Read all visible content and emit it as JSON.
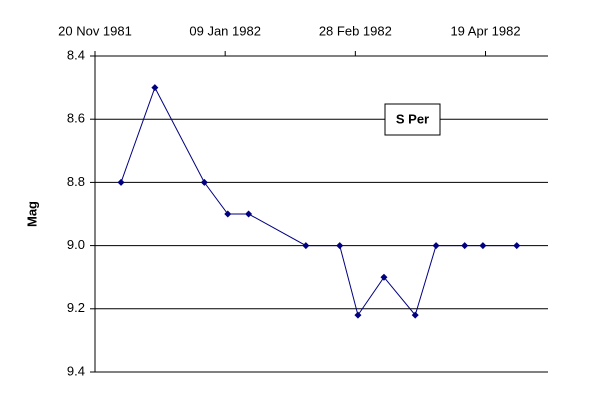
{
  "chart_data": {
    "type": "line",
    "title": "S Per",
    "y_label": "Mag",
    "x": [
      "1981-11-30",
      "1981-12-13",
      "1982-01-01",
      "1982-01-10",
      "1982-01-18",
      "1982-02-09",
      "1982-02-22",
      "1982-03-01",
      "1982-03-11",
      "1982-03-23",
      "1982-03-31",
      "1982-04-11",
      "1982-04-18",
      "1982-05-01"
    ],
    "series": [
      {
        "name": "S Per",
        "color": "#000080",
        "values": [
          8.8,
          8.5,
          8.8,
          8.9,
          8.9,
          9.0,
          9.0,
          9.22,
          9.1,
          9.22,
          9.0,
          9.0,
          9.0,
          9.0
        ]
      }
    ],
    "xlim": [
      "1981-11-20",
      "1982-05-13"
    ],
    "xticks": [
      {
        "value": "1981-11-20",
        "label": "20 Nov 1981"
      },
      {
        "value": "1982-01-09",
        "label": "09 Jan 1982"
      },
      {
        "value": "1982-02-28",
        "label": "28 Feb 1982"
      },
      {
        "value": "1982-04-19",
        "label": "19 Apr 1982"
      }
    ],
    "ylim": [
      8.4,
      9.4
    ],
    "y_inverted": true,
    "yticks": [
      8.4,
      8.6,
      8.8,
      {
        "value": 9,
        "label": "9.0"
      },
      9.2,
      9.4
    ],
    "grid": true
  }
}
